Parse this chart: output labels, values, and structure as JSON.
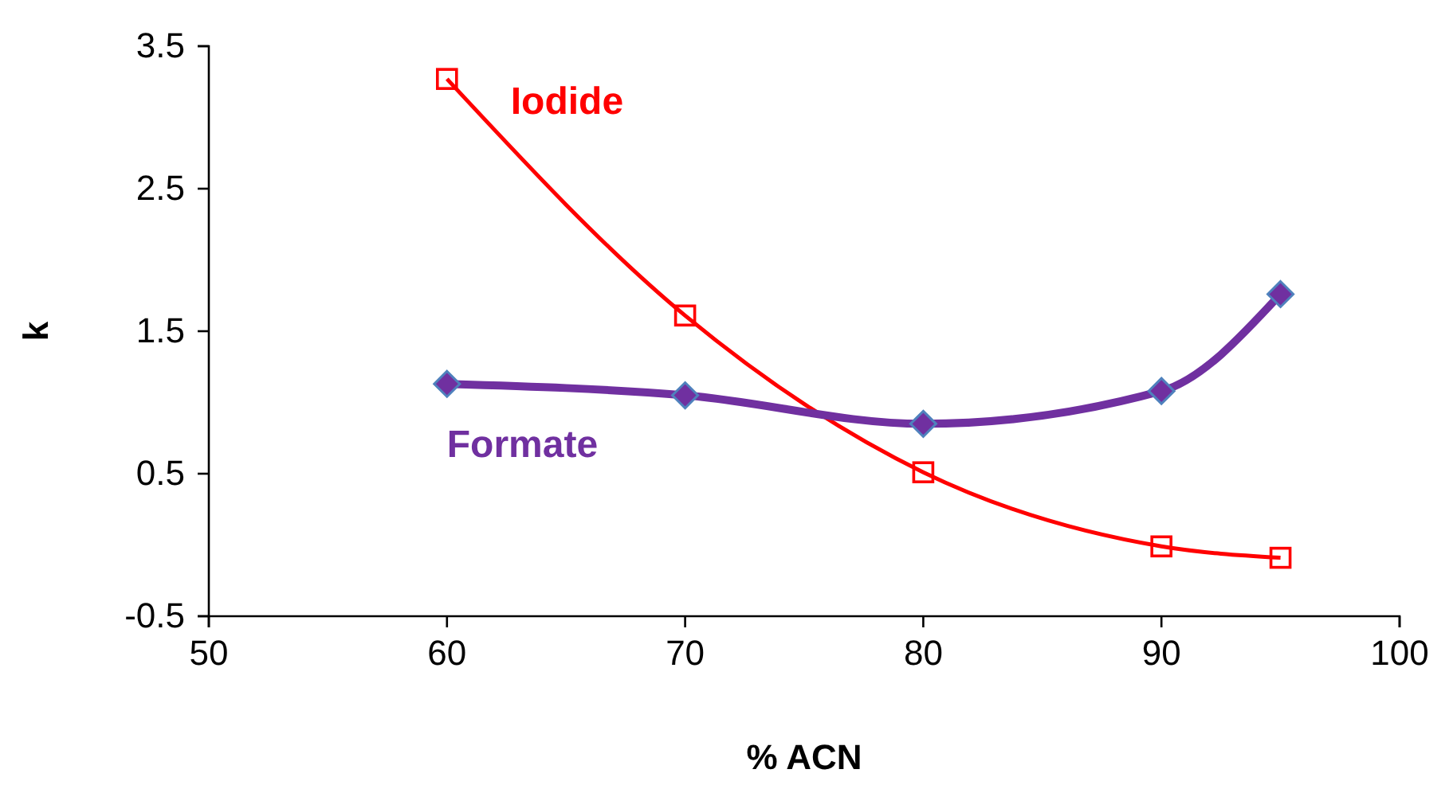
{
  "chart_data": {
    "type": "line",
    "xlabel": "% ACN",
    "ylabel": "k",
    "xlim": [
      50,
      100
    ],
    "xticks": [
      50,
      60,
      70,
      80,
      90,
      100
    ],
    "ylim": [
      -0.5,
      3.5
    ],
    "yticks": [
      -0.5,
      0.5,
      1.5,
      2.5,
      3.5
    ],
    "grid": false,
    "series": [
      {
        "name": "Iodide",
        "color": "#ff0000",
        "marker": "square",
        "x": [
          60,
          70,
          80,
          90,
          95
        ],
        "values": [
          3.27,
          1.61,
          0.51,
          -0.01,
          -0.09
        ]
      },
      {
        "name": "Formate",
        "color": "#7030a0",
        "marker": "diamond",
        "x": [
          60,
          70,
          80,
          90,
          95
        ],
        "values": [
          1.13,
          1.05,
          0.85,
          1.08,
          1.76
        ]
      }
    ]
  }
}
